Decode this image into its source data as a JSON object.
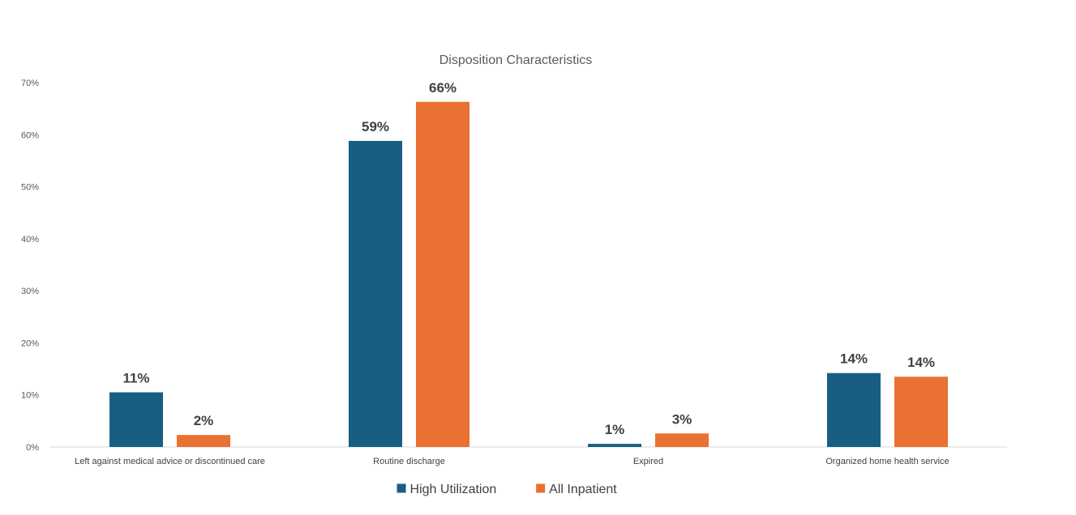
{
  "chart_data": {
    "type": "bar",
    "title": "Disposition Characteristics",
    "xlabel": "",
    "ylabel": "",
    "categories": [
      "Left against medical advice or discontinued care",
      "Routine discharge",
      "Expired",
      "Organized home health service"
    ],
    "series": [
      {
        "name": "High Utilization",
        "values": [
          10.5,
          58.8,
          0.6,
          14.2
        ],
        "labels": [
          "11%",
          "59%",
          "1%",
          "14%"
        ],
        "color": "#175E82"
      },
      {
        "name": "All Inpatient",
        "values": [
          2.3,
          66.3,
          2.6,
          13.5
        ],
        "labels": [
          "2%",
          "66%",
          "3%",
          "14%"
        ],
        "color": "#E97132"
      }
    ],
    "ylim": [
      0,
      70
    ],
    "yticks": [
      "0%",
      "10%",
      "20%",
      "30%",
      "40%",
      "50%",
      "60%",
      "70%"
    ],
    "grid": false,
    "legend_position": "bottom"
  }
}
